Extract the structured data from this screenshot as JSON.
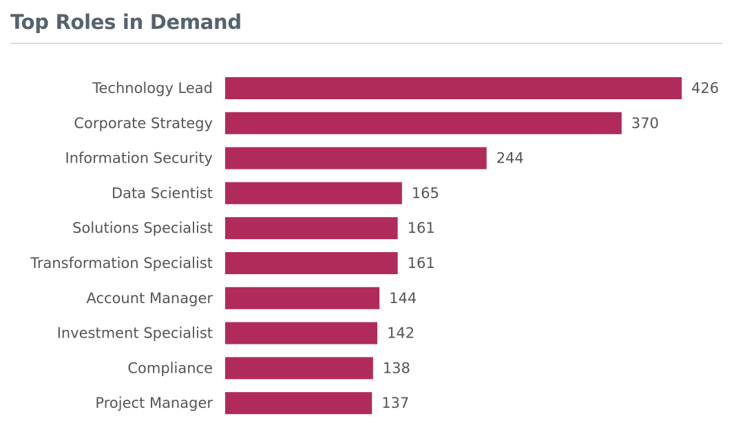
{
  "title": "Top Roles in Demand",
  "bar_color": "#b02b5c",
  "chart_data": {
    "type": "bar",
    "orientation": "horizontal",
    "title": "Top Roles in Demand",
    "xlabel": "",
    "ylabel": "",
    "grid": false,
    "categories": [
      "Technology Lead",
      "Corporate Strategy",
      "Information Security",
      "Data Scientist",
      "Solutions Specialist",
      "Transformation Specialist",
      "Account Manager",
      "Investment Specialist",
      "Compliance",
      "Project Manager"
    ],
    "values": [
      426,
      370,
      244,
      165,
      161,
      161,
      144,
      142,
      138,
      137
    ],
    "xlim": [
      0,
      426
    ]
  }
}
